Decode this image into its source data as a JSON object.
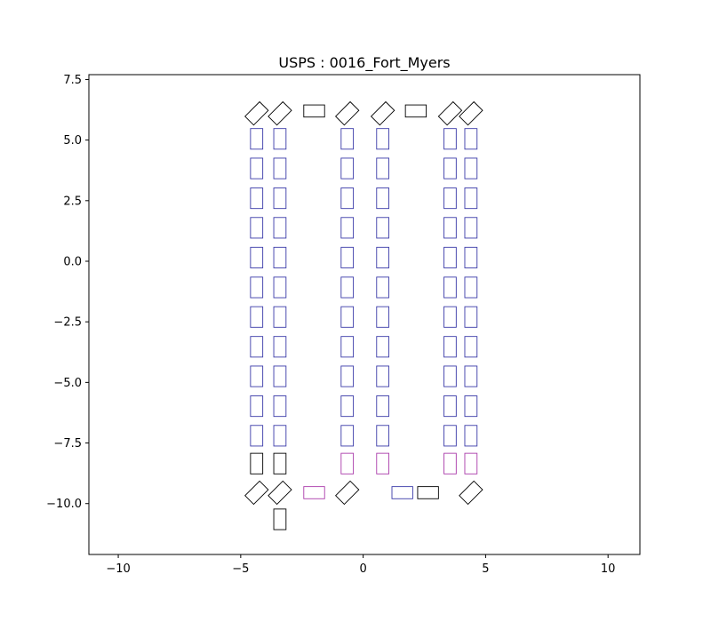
{
  "chart_data": {
    "type": "scatter",
    "title": "USPS : 0016_Fort_Myers",
    "xlabel": "",
    "ylabel": "",
    "xlim": [
      -11.2,
      11.3
    ],
    "ylim": [
      -12.1,
      7.7
    ],
    "xticks": [
      -10,
      -5,
      0,
      5,
      10
    ],
    "xtick_labels": [
      "−10",
      "−5",
      "0",
      "5",
      "10"
    ],
    "yticks": [
      7.5,
      5.0,
      2.5,
      0.0,
      -2.5,
      -5.0,
      -7.5,
      -10.0
    ],
    "ytick_labels": [
      "7.5",
      "5.0",
      "2.5",
      "0.0",
      "−2.5",
      "−5.0",
      "−7.5",
      "−10.0"
    ],
    "grid": false,
    "colors": {
      "black": "#000000",
      "blue": "#3a3aa8",
      "purple": "#aa3aaa"
    },
    "rect_size": {
      "w": 0.5,
      "h": 0.85
    },
    "column_x": [
      -4.35,
      -3.4,
      -0.65,
      0.8,
      3.55,
      4.4
    ],
    "row_y": [
      5.05,
      3.83,
      2.6,
      1.38,
      0.15,
      -1.08,
      -2.3,
      -3.53,
      -4.75,
      -5.98,
      -7.2
    ],
    "bottom_row": {
      "y": -8.35,
      "colors": [
        "black",
        "black",
        "purple",
        "purple",
        "purple",
        "purple"
      ]
    },
    "extra_vertical": [
      {
        "x": -3.4,
        "y": -10.65,
        "color": "black"
      }
    ],
    "diamonds_top": {
      "y": 6.1,
      "x": [
        -4.35,
        -3.4,
        -0.65,
        0.8,
        3.55,
        4.4
      ]
    },
    "diamonds_bottom": {
      "y": -9.55,
      "x": [
        -4.35,
        -3.4,
        -0.65,
        4.4
      ]
    },
    "horizontal_rects": [
      {
        "x": -2.0,
        "y": 6.2,
        "color": "black"
      },
      {
        "x": 2.15,
        "y": 6.2,
        "color": "black"
      },
      {
        "x": -2.0,
        "y": -9.55,
        "color": "purple"
      },
      {
        "x": 1.6,
        "y": -9.55,
        "color": "blue"
      },
      {
        "x": 2.65,
        "y": -9.55,
        "color": "black"
      }
    ]
  }
}
